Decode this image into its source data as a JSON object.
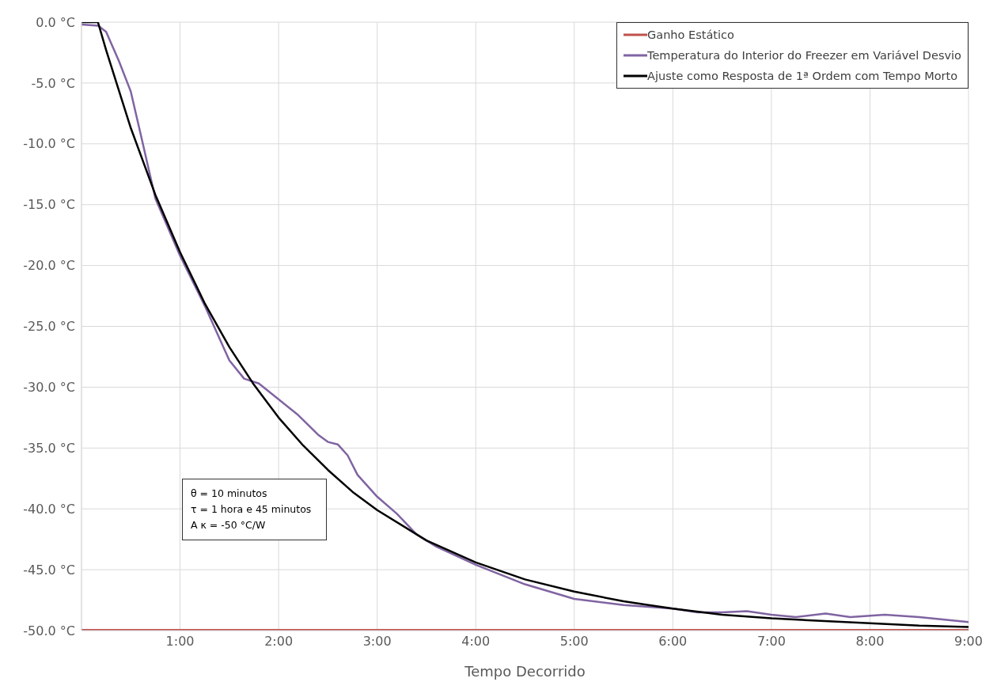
{
  "chart_data": {
    "type": "line",
    "xlabel": "Tempo Decorrido",
    "xlim": [
      0,
      9
    ],
    "xticks": [
      {
        "value": 0,
        "label": null
      },
      {
        "value": 1,
        "label": "1:00"
      },
      {
        "value": 2,
        "label": "2:00"
      },
      {
        "value": 3,
        "label": "3:00"
      },
      {
        "value": 4,
        "label": "4:00"
      },
      {
        "value": 5,
        "label": "5:00"
      },
      {
        "value": 6,
        "label": "6:00"
      },
      {
        "value": 7,
        "label": "7:00"
      },
      {
        "value": 8,
        "label": "8:00"
      },
      {
        "value": 9,
        "label": "9:00"
      }
    ],
    "ylim": [
      -50,
      0
    ],
    "yticks": [
      {
        "value": 0,
        "label": "0.0 °C"
      },
      {
        "value": -5,
        "label": "-5.0 °C"
      },
      {
        "value": -10,
        "label": "-10.0 °C"
      },
      {
        "value": -15,
        "label": "-15.0 °C"
      },
      {
        "value": -20,
        "label": "-20.0 °C"
      },
      {
        "value": -25,
        "label": "-25.0 °C"
      },
      {
        "value": -30,
        "label": "-30.0 °C"
      },
      {
        "value": -35,
        "label": "-35.0 °C"
      },
      {
        "value": -40,
        "label": "-40.0 °C"
      },
      {
        "value": -45,
        "label": "-45.0 °C"
      },
      {
        "value": -50,
        "label": "-50.0 °C"
      }
    ],
    "grid": true,
    "legend": "top right",
    "marker": "none",
    "line_style": "solid",
    "annotations": [
      "θ = 10 minutos",
      "τ = 1 hora e 45 minutos",
      "A κ = -50 °C/W"
    ],
    "series": [
      {
        "name": "Ganho Estático",
        "color": "#c0504d",
        "x": [
          0,
          9
        ],
        "values": [
          -50,
          -50
        ]
      },
      {
        "name": "Temperatura do Interior do Freezer em Variável Desvio",
        "color": "#8064a2",
        "x": [
          0,
          0.17,
          0.25,
          0.38,
          0.5,
          0.6,
          0.75,
          1.0,
          1.25,
          1.5,
          1.65,
          1.8,
          2.0,
          2.2,
          2.4,
          2.5,
          2.6,
          2.7,
          2.8,
          3.0,
          3.2,
          3.4,
          3.6,
          4.0,
          4.5,
          5.0,
          5.5,
          6.0,
          6.25,
          6.5,
          6.75,
          7.0,
          7.25,
          7.55,
          7.8,
          8.15,
          8.5,
          9.0
        ],
        "values": [
          -0.2,
          -0.3,
          -0.8,
          -3.2,
          -5.7,
          -9.2,
          -14.5,
          -19.2,
          -23.3,
          -27.8,
          -29.3,
          -29.7,
          -31.0,
          -32.3,
          -33.9,
          -34.5,
          -34.7,
          -35.6,
          -37.2,
          -39.0,
          -40.4,
          -42.1,
          -43.1,
          -44.6,
          -46.2,
          -47.4,
          -47.9,
          -48.2,
          -48.5,
          -48.5,
          -48.4,
          -48.7,
          -48.9,
          -48.6,
          -48.9,
          -48.7,
          -48.9,
          -49.3
        ]
      },
      {
        "name": "Ajuste como Resposta de 1ª Ordem com Tempo Morto",
        "color": "#000000",
        "x": [
          0,
          0.1667,
          0.25,
          0.5,
          0.75,
          1.0,
          1.25,
          1.5,
          1.75,
          2.0,
          2.25,
          2.5,
          2.75,
          3.0,
          3.5,
          4.0,
          4.5,
          5.0,
          5.5,
          6.0,
          6.5,
          7.0,
          7.5,
          8.0,
          8.5,
          9.0
        ],
        "values": [
          0,
          0,
          -2.3,
          -8.7,
          -14.2,
          -18.9,
          -23.1,
          -26.7,
          -29.8,
          -32.5,
          -34.8,
          -36.8,
          -38.6,
          -40.1,
          -42.6,
          -44.4,
          -45.8,
          -46.8,
          -47.6,
          -48.2,
          -48.7,
          -49.0,
          -49.2,
          -49.4,
          -49.6,
          -49.7
        ]
      }
    ]
  }
}
